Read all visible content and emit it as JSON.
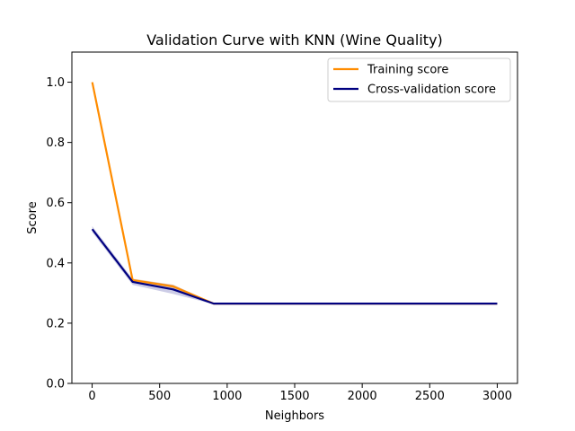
{
  "chart_data": {
    "type": "line",
    "title": "Validation Curve with KNN (Wine Quality)",
    "xlabel": "Neighbors",
    "ylabel": "Score",
    "xlim": [
      -150,
      3150
    ],
    "ylim": [
      0.0,
      1.1
    ],
    "xticks": [
      0,
      500,
      1000,
      1500,
      2000,
      2500,
      3000
    ],
    "xtick_labels": [
      "0",
      "500",
      "1000",
      "1500",
      "2000",
      "2500",
      "3000"
    ],
    "yticks": [
      0.0,
      0.2,
      0.4,
      0.6,
      0.8,
      1.0
    ],
    "ytick_labels": [
      "0.0",
      "0.2",
      "0.4",
      "0.6",
      "0.8",
      "1.0"
    ],
    "grid": false,
    "legend_position": "top-right",
    "x": [
      1,
      300,
      600,
      900,
      1200,
      1500,
      1800,
      2100,
      2400,
      2700,
      3000
    ],
    "series": [
      {
        "name": "Training score",
        "color": "#ff8c00",
        "band_color": "#ff8c00",
        "values": [
          1.0,
          0.343,
          0.322,
          0.265,
          0.265,
          0.265,
          0.265,
          0.265,
          0.265,
          0.265,
          0.265
        ],
        "band_lower": [
          1.0,
          0.338,
          0.316,
          0.264,
          0.264,
          0.264,
          0.264,
          0.264,
          0.264,
          0.264,
          0.264
        ],
        "band_upper": [
          1.0,
          0.348,
          0.328,
          0.266,
          0.266,
          0.266,
          0.266,
          0.266,
          0.266,
          0.266,
          0.266
        ]
      },
      {
        "name": "Cross-validation score",
        "color": "#000080",
        "band_color": "#000080",
        "values": [
          0.512,
          0.337,
          0.312,
          0.265,
          0.265,
          0.265,
          0.265,
          0.265,
          0.265,
          0.265,
          0.265
        ],
        "band_lower": [
          0.502,
          0.327,
          0.297,
          0.263,
          0.263,
          0.263,
          0.263,
          0.263,
          0.263,
          0.263,
          0.263
        ],
        "band_upper": [
          0.522,
          0.347,
          0.327,
          0.267,
          0.267,
          0.267,
          0.267,
          0.267,
          0.267,
          0.267,
          0.267
        ]
      }
    ]
  }
}
